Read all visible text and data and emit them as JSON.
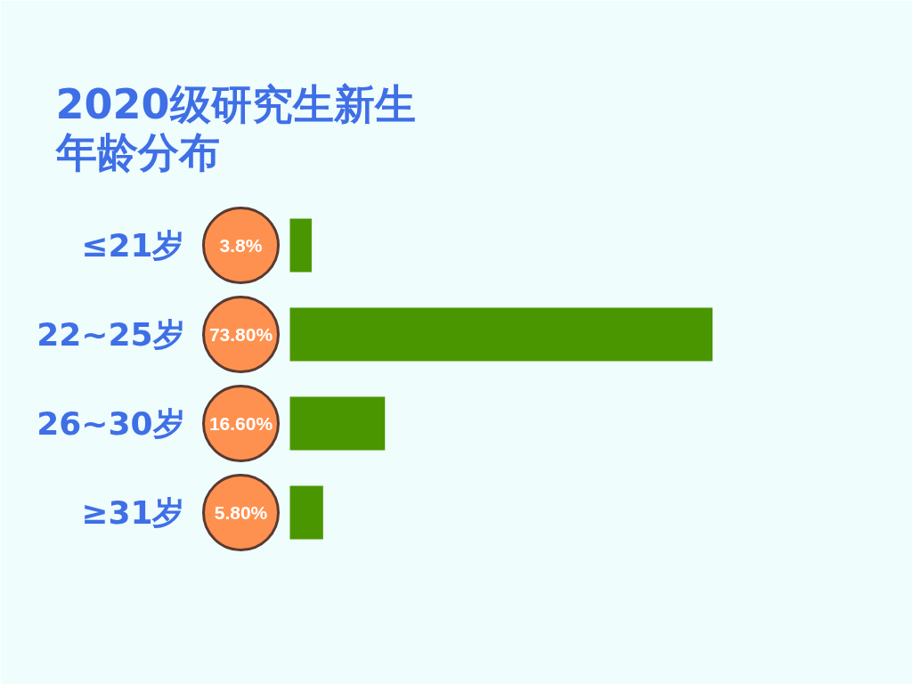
{
  "chart_data": {
    "type": "bar",
    "orientation": "horizontal",
    "title": "2020级研究生新生年龄分布",
    "categories": [
      "≤21岁",
      "22~25岁",
      "26~30岁",
      "≥31岁"
    ],
    "values": [
      3.8,
      73.8,
      16.6,
      5.8
    ],
    "color": "#4a9600",
    "value_labels": [
      "3.8%",
      "73.80%",
      "16.60%",
      "5.80%"
    ],
    "xlim": [
      0,
      100
    ],
    "tick_labels": "y"
  }
}
